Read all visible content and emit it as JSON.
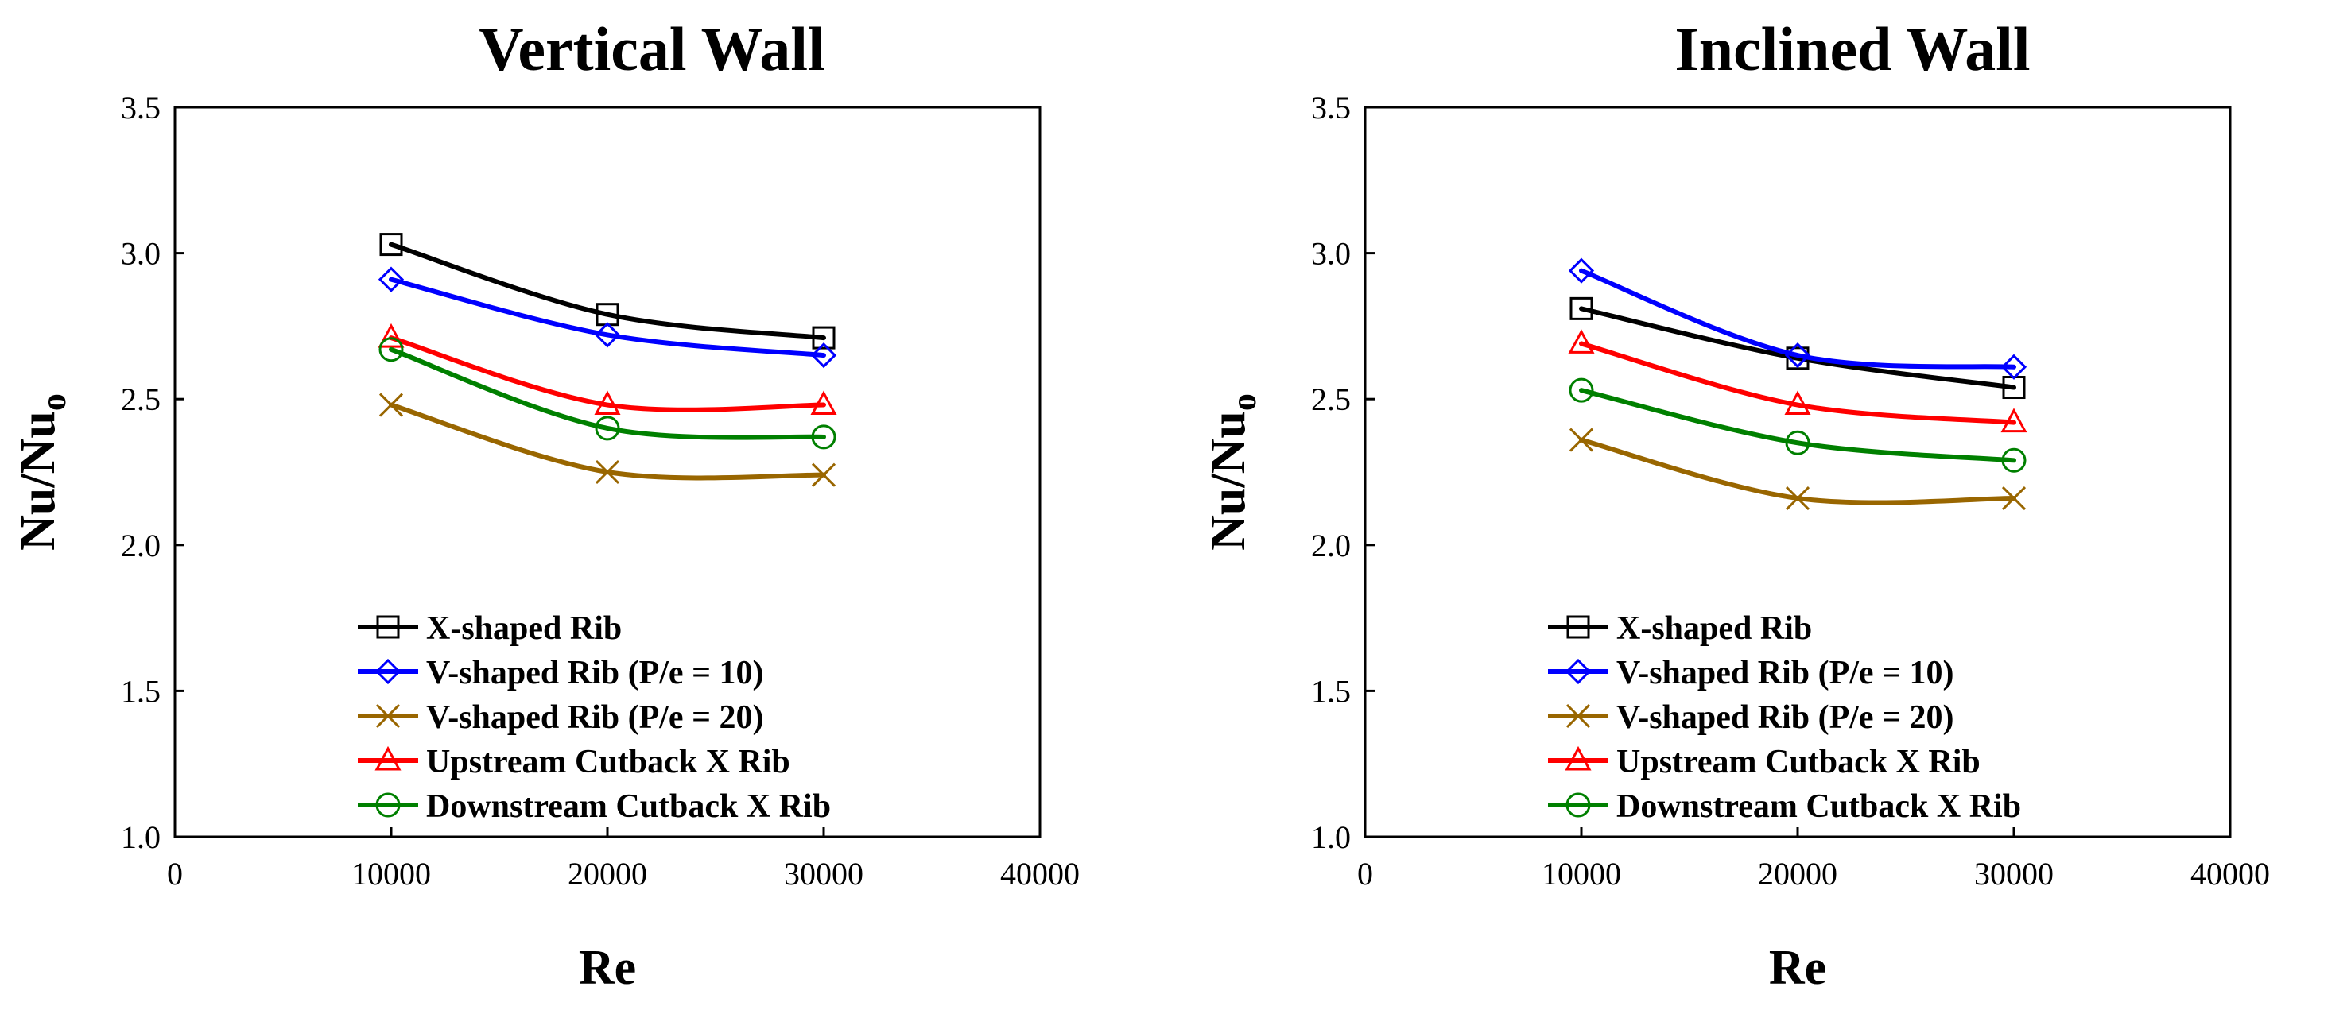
{
  "figure": {
    "panels": [
      {
        "title": "Vertical Wall"
      },
      {
        "title": "Inclined Wall"
      }
    ]
  },
  "chart_data": [
    {
      "type": "line",
      "title": "Vertical Wall",
      "xlabel": "Re",
      "ylabel": "Nu/Nu",
      "ylabel_subscript": "o",
      "xlim": [
        0,
        40000
      ],
      "ylim": [
        1.0,
        3.5
      ],
      "xticks": [
        0,
        10000,
        20000,
        30000,
        40000
      ],
      "yticks": [
        1.0,
        1.5,
        2.0,
        2.5,
        3.0,
        3.5
      ],
      "xtick_labels": [
        "0",
        "10000",
        "20000",
        "30000",
        "40000"
      ],
      "ytick_labels": [
        "1.0",
        "1.5",
        "2.0",
        "2.5",
        "3.0",
        "3.5"
      ],
      "grid": false,
      "legend_position": "bottom-center",
      "x": [
        10000,
        20000,
        30000
      ],
      "series": [
        {
          "name": "X-shaped Rib",
          "values": [
            3.03,
            2.79,
            2.71
          ],
          "color": "#000000",
          "marker": "square"
        },
        {
          "name": "V-shaped Rib (P/e = 10)",
          "values": [
            2.91,
            2.72,
            2.65
          ],
          "color": "#0000ff",
          "marker": "diamond"
        },
        {
          "name": "V-shaped Rib (P/e = 20)",
          "values": [
            2.48,
            2.25,
            2.24
          ],
          "color": "#996600",
          "marker": "x"
        },
        {
          "name": "Upstream Cutback X Rib",
          "values": [
            2.71,
            2.48,
            2.48
          ],
          "color": "#ff0000",
          "marker": "triangle"
        },
        {
          "name": "Downstream Cutback X Rib",
          "values": [
            2.67,
            2.4,
            2.37
          ],
          "color": "#008000",
          "marker": "circle"
        }
      ]
    },
    {
      "type": "line",
      "title": "Inclined Wall",
      "xlabel": "Re",
      "ylabel": "Nu/Nu",
      "ylabel_subscript": "o",
      "xlim": [
        0,
        40000
      ],
      "ylim": [
        1.0,
        3.5
      ],
      "xticks": [
        0,
        10000,
        20000,
        30000,
        40000
      ],
      "yticks": [
        1.0,
        1.5,
        2.0,
        2.5,
        3.0,
        3.5
      ],
      "xtick_labels": [
        "0",
        "10000",
        "20000",
        "30000",
        "40000"
      ],
      "ytick_labels": [
        "1.0",
        "1.5",
        "2.0",
        "2.5",
        "3.0",
        "3.5"
      ],
      "grid": false,
      "legend_position": "bottom-center",
      "x": [
        10000,
        20000,
        30000
      ],
      "series": [
        {
          "name": "X-shaped Rib",
          "values": [
            2.81,
            2.64,
            2.54
          ],
          "color": "#000000",
          "marker": "square"
        },
        {
          "name": "V-shaped Rib (P/e = 10)",
          "values": [
            2.94,
            2.65,
            2.61
          ],
          "color": "#0000ff",
          "marker": "diamond"
        },
        {
          "name": "V-shaped Rib (P/e = 20)",
          "values": [
            2.36,
            2.16,
            2.16
          ],
          "color": "#996600",
          "marker": "x"
        },
        {
          "name": "Upstream Cutback X Rib",
          "values": [
            2.69,
            2.48,
            2.42
          ],
          "color": "#ff0000",
          "marker": "triangle"
        },
        {
          "name": "Downstream Cutback X Rib",
          "values": [
            2.53,
            2.35,
            2.29
          ],
          "color": "#008000",
          "marker": "circle"
        }
      ]
    }
  ]
}
